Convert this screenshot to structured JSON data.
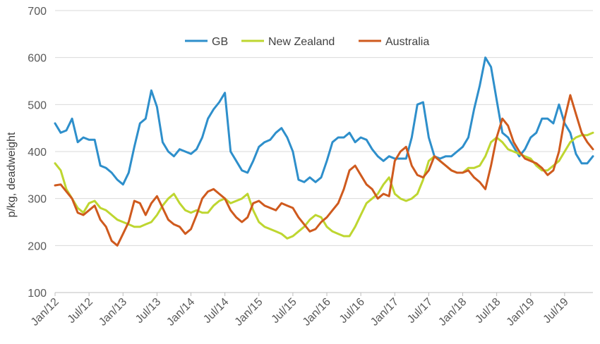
{
  "chart_data": {
    "type": "line",
    "title": "",
    "xlabel": "",
    "ylabel": "p/kg, deadweight",
    "ylim": [
      100,
      700
    ],
    "yticks": [
      100,
      200,
      300,
      400,
      500,
      600,
      700
    ],
    "xlim": [
      "2012-01",
      "2019-12"
    ],
    "xticks": [
      "Jan/12",
      "Jul/12",
      "Jan/13",
      "Jul/13",
      "Jan/14",
      "Jul/14",
      "Jan/15",
      "Jul/15",
      "Jan/16",
      "Jul/16",
      "Jan/17",
      "Jul/17",
      "Jan/18",
      "Jul/18",
      "Jan/19",
      "Jul/19"
    ],
    "grid": "horizontal",
    "legend": "top",
    "series": [
      {
        "name": "GB",
        "color": "#2E8FCB",
        "x": [
          "2012-01",
          "2012-02",
          "2012-03",
          "2012-04",
          "2012-05",
          "2012-06",
          "2012-07",
          "2012-08",
          "2012-09",
          "2012-10",
          "2012-11",
          "2012-12",
          "2013-01",
          "2013-02",
          "2013-03",
          "2013-04",
          "2013-05",
          "2013-06",
          "2013-07",
          "2013-08",
          "2013-09",
          "2013-10",
          "2013-11",
          "2013-12",
          "2014-01",
          "2014-02",
          "2014-03",
          "2014-04",
          "2014-05",
          "2014-06",
          "2014-07",
          "2014-08",
          "2014-09",
          "2014-10",
          "2014-11",
          "2014-12",
          "2015-01",
          "2015-02",
          "2015-03",
          "2015-04",
          "2015-05",
          "2015-06",
          "2015-07",
          "2015-08",
          "2015-09",
          "2015-10",
          "2015-11",
          "2015-12",
          "2016-01",
          "2016-02",
          "2016-03",
          "2016-04",
          "2016-05",
          "2016-06",
          "2016-07",
          "2016-08",
          "2016-09",
          "2016-10",
          "2016-11",
          "2016-12",
          "2017-01",
          "2017-02",
          "2017-03",
          "2017-04",
          "2017-05",
          "2017-06",
          "2017-07",
          "2017-08",
          "2017-09",
          "2017-10",
          "2017-11",
          "2017-12",
          "2018-01",
          "2018-02",
          "2018-03",
          "2018-04",
          "2018-05",
          "2018-06",
          "2018-07",
          "2018-08",
          "2018-09",
          "2018-10",
          "2018-11",
          "2018-12",
          "2019-01",
          "2019-02",
          "2019-03",
          "2019-04",
          "2019-05",
          "2019-06",
          "2019-07",
          "2019-08",
          "2019-09",
          "2019-10",
          "2019-11",
          "2019-12"
        ],
        "values": [
          460,
          440,
          445,
          470,
          420,
          430,
          425,
          425,
          370,
          365,
          355,
          340,
          330,
          355,
          410,
          460,
          470,
          530,
          495,
          420,
          400,
          390,
          405,
          400,
          395,
          405,
          430,
          470,
          490,
          505,
          525,
          400,
          380,
          360,
          355,
          380,
          410,
          420,
          425,
          440,
          450,
          430,
          400,
          340,
          335,
          345,
          335,
          345,
          380,
          420,
          430,
          430,
          440,
          420,
          430,
          425,
          405,
          390,
          380,
          390,
          385,
          385,
          385,
          430,
          500,
          505,
          430,
          390,
          385,
          390,
          390,
          400,
          410,
          430,
          490,
          540,
          600,
          580,
          510,
          440,
          430,
          410,
          390,
          405,
          430,
          440,
          470,
          470,
          460,
          500,
          460,
          440,
          395,
          375,
          375,
          390
        ]
      },
      {
        "name": "New Zealand",
        "color": "#BED630",
        "x": [
          "2012-01",
          "2012-02",
          "2012-03",
          "2012-04",
          "2012-05",
          "2012-06",
          "2012-07",
          "2012-08",
          "2012-09",
          "2012-10",
          "2012-11",
          "2012-12",
          "2013-01",
          "2013-02",
          "2013-03",
          "2013-04",
          "2013-05",
          "2013-06",
          "2013-07",
          "2013-08",
          "2013-09",
          "2013-10",
          "2013-11",
          "2013-12",
          "2014-01",
          "2014-02",
          "2014-03",
          "2014-04",
          "2014-05",
          "2014-06",
          "2014-07",
          "2014-08",
          "2014-09",
          "2014-10",
          "2014-11",
          "2014-12",
          "2015-01",
          "2015-02",
          "2015-03",
          "2015-04",
          "2015-05",
          "2015-06",
          "2015-07",
          "2015-08",
          "2015-09",
          "2015-10",
          "2015-11",
          "2015-12",
          "2016-01",
          "2016-02",
          "2016-03",
          "2016-04",
          "2016-05",
          "2016-06",
          "2016-07",
          "2016-08",
          "2016-09",
          "2016-10",
          "2016-11",
          "2016-12",
          "2017-01",
          "2017-02",
          "2017-03",
          "2017-04",
          "2017-05",
          "2017-06",
          "2017-07",
          "2017-08",
          "2017-09",
          "2017-10",
          "2017-11",
          "2017-12",
          "2018-01",
          "2018-02",
          "2018-03",
          "2018-04",
          "2018-05",
          "2018-06",
          "2018-07",
          "2018-08",
          "2018-09",
          "2018-10",
          "2018-11",
          "2018-12",
          "2019-01",
          "2019-02",
          "2019-03",
          "2019-04",
          "2019-05",
          "2019-06",
          "2019-07",
          "2019-08",
          "2019-09",
          "2019-10",
          "2019-11",
          "2019-12"
        ],
        "values": [
          375,
          360,
          320,
          300,
          280,
          270,
          290,
          295,
          280,
          275,
          265,
          255,
          250,
          245,
          240,
          240,
          245,
          250,
          265,
          285,
          300,
          310,
          290,
          275,
          270,
          275,
          270,
          270,
          285,
          295,
          300,
          290,
          295,
          300,
          310,
          275,
          250,
          240,
          235,
          230,
          225,
          215,
          220,
          230,
          240,
          255,
          265,
          260,
          240,
          230,
          225,
          220,
          220,
          240,
          265,
          290,
          300,
          310,
          330,
          345,
          310,
          300,
          295,
          300,
          310,
          340,
          380,
          390,
          380,
          370,
          360,
          355,
          355,
          365,
          365,
          370,
          390,
          420,
          430,
          420,
          405,
          400,
          395,
          390,
          385,
          370,
          360,
          360,
          370,
          380,
          400,
          420,
          430,
          435,
          435,
          440
        ]
      },
      {
        "name": "Australia",
        "color": "#CF5A1E",
        "x": [
          "2012-01",
          "2012-02",
          "2012-03",
          "2012-04",
          "2012-05",
          "2012-06",
          "2012-07",
          "2012-08",
          "2012-09",
          "2012-10",
          "2012-11",
          "2012-12",
          "2013-01",
          "2013-02",
          "2013-03",
          "2013-04",
          "2013-05",
          "2013-06",
          "2013-07",
          "2013-08",
          "2013-09",
          "2013-10",
          "2013-11",
          "2013-12",
          "2014-01",
          "2014-02",
          "2014-03",
          "2014-04",
          "2014-05",
          "2014-06",
          "2014-07",
          "2014-08",
          "2014-09",
          "2014-10",
          "2014-11",
          "2014-12",
          "2015-01",
          "2015-02",
          "2015-03",
          "2015-04",
          "2015-05",
          "2015-06",
          "2015-07",
          "2015-08",
          "2015-09",
          "2015-10",
          "2015-11",
          "2015-12",
          "2016-01",
          "2016-02",
          "2016-03",
          "2016-04",
          "2016-05",
          "2016-06",
          "2016-07",
          "2016-08",
          "2016-09",
          "2016-10",
          "2016-11",
          "2016-12",
          "2017-01",
          "2017-02",
          "2017-03",
          "2017-04",
          "2017-05",
          "2017-06",
          "2017-07",
          "2017-08",
          "2017-09",
          "2017-10",
          "2017-11",
          "2017-12",
          "2018-01",
          "2018-02",
          "2018-03",
          "2018-04",
          "2018-05",
          "2018-06",
          "2018-07",
          "2018-08",
          "2018-09",
          "2018-10",
          "2018-11",
          "2018-12",
          "2019-01",
          "2019-02",
          "2019-03",
          "2019-04",
          "2019-05",
          "2019-06",
          "2019-07",
          "2019-08",
          "2019-09",
          "2019-10",
          "2019-11",
          "2019-12"
        ],
        "values": [
          328,
          330,
          315,
          300,
          270,
          265,
          275,
          285,
          255,
          240,
          210,
          200,
          225,
          250,
          295,
          290,
          265,
          290,
          305,
          280,
          255,
          245,
          240,
          225,
          235,
          265,
          300,
          315,
          320,
          310,
          300,
          275,
          260,
          250,
          260,
          290,
          295,
          285,
          280,
          275,
          290,
          285,
          280,
          260,
          245,
          230,
          235,
          250,
          260,
          275,
          290,
          320,
          360,
          370,
          350,
          330,
          320,
          300,
          310,
          305,
          380,
          400,
          410,
          370,
          350,
          345,
          360,
          390,
          380,
          370,
          360,
          355,
          355,
          360,
          345,
          335,
          320,
          370,
          430,
          470,
          455,
          420,
          400,
          385,
          380,
          375,
          365,
          350,
          360,
          400,
          470,
          520,
          480,
          440,
          420,
          405
        ]
      }
    ]
  }
}
